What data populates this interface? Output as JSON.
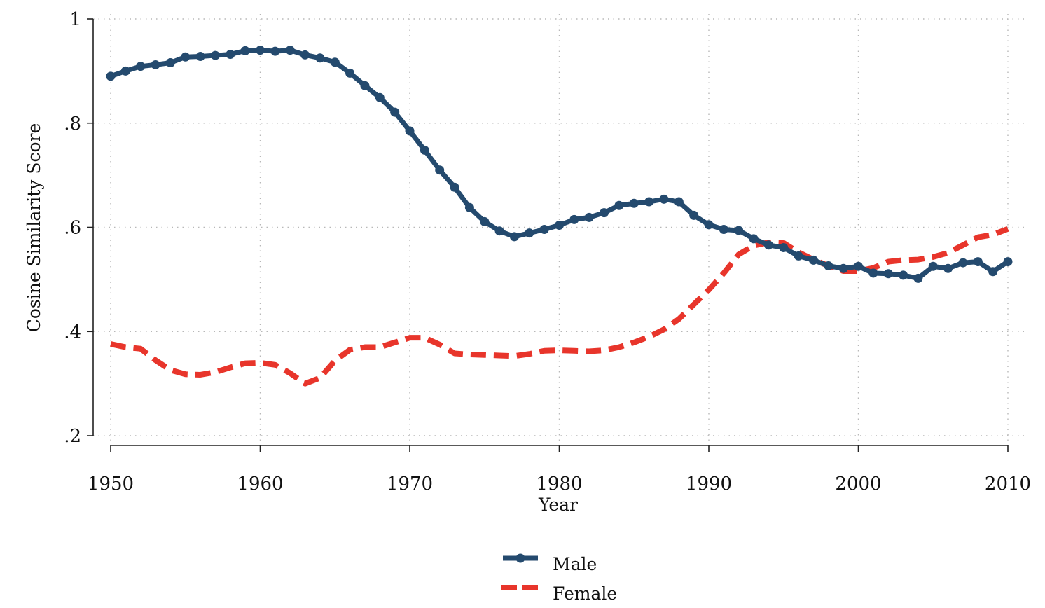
{
  "chart_data": {
    "type": "line",
    "title": "",
    "xlabel": "Year",
    "ylabel": "Cosine Similarity Score",
    "xlim": [
      1950,
      2010
    ],
    "ylim": [
      0.2,
      1.0
    ],
    "x_ticks": [
      1950,
      1960,
      1970,
      1980,
      1990,
      2000,
      2010
    ],
    "x_tick_labels": [
      "1950",
      "1960",
      "1970",
      "1980",
      "1990",
      "2000",
      "2010"
    ],
    "y_ticks": [
      0.2,
      0.4,
      0.6,
      0.8,
      1.0
    ],
    "y_tick_labels": [
      ".2",
      ".4",
      ".6",
      ".8",
      "1"
    ],
    "grid": true,
    "legend_position": "bottom-center",
    "x": [
      1950,
      1951,
      1952,
      1953,
      1954,
      1955,
      1956,
      1957,
      1958,
      1959,
      1960,
      1961,
      1962,
      1963,
      1964,
      1965,
      1966,
      1967,
      1968,
      1969,
      1970,
      1971,
      1972,
      1973,
      1974,
      1975,
      1976,
      1977,
      1978,
      1979,
      1980,
      1981,
      1982,
      1983,
      1984,
      1985,
      1986,
      1987,
      1988,
      1989,
      1990,
      1991,
      1992,
      1993,
      1994,
      1995,
      1996,
      1997,
      1998,
      1999,
      2000,
      2001,
      2002,
      2003,
      2004,
      2005,
      2006,
      2007,
      2008,
      2009,
      2010
    ],
    "series": [
      {
        "name": "Male",
        "color": "#244a6e",
        "style": "solid-markers",
        "values": [
          0.89,
          0.9,
          0.909,
          0.912,
          0.916,
          0.927,
          0.928,
          0.93,
          0.932,
          0.939,
          0.94,
          0.938,
          0.94,
          0.931,
          0.925,
          0.917,
          0.896,
          0.872,
          0.849,
          0.821,
          0.785,
          0.748,
          0.71,
          0.677,
          0.638,
          0.611,
          0.593,
          0.582,
          0.589,
          0.596,
          0.604,
          0.615,
          0.619,
          0.628,
          0.642,
          0.646,
          0.649,
          0.654,
          0.649,
          0.623,
          0.605,
          0.596,
          0.594,
          0.578,
          0.566,
          0.561,
          0.545,
          0.537,
          0.526,
          0.521,
          0.525,
          0.512,
          0.511,
          0.508,
          0.502,
          0.525,
          0.521,
          0.532,
          0.534,
          0.515,
          0.534
        ]
      },
      {
        "name": "Female",
        "color": "#e8352b",
        "style": "dashed",
        "values": [
          0.376,
          0.37,
          0.367,
          0.345,
          0.326,
          0.318,
          0.317,
          0.322,
          0.331,
          0.339,
          0.34,
          0.336,
          0.32,
          0.3,
          0.311,
          0.344,
          0.365,
          0.37,
          0.37,
          0.379,
          0.388,
          0.388,
          0.375,
          0.358,
          0.356,
          0.355,
          0.354,
          0.353,
          0.357,
          0.363,
          0.364,
          0.363,
          0.362,
          0.364,
          0.37,
          0.379,
          0.39,
          0.404,
          0.424,
          0.452,
          0.48,
          0.512,
          0.548,
          0.565,
          0.571,
          0.57,
          0.552,
          0.538,
          0.526,
          0.516,
          0.516,
          0.522,
          0.534,
          0.537,
          0.538,
          0.543,
          0.551,
          0.566,
          0.581,
          0.586,
          0.597
        ]
      }
    ]
  }
}
